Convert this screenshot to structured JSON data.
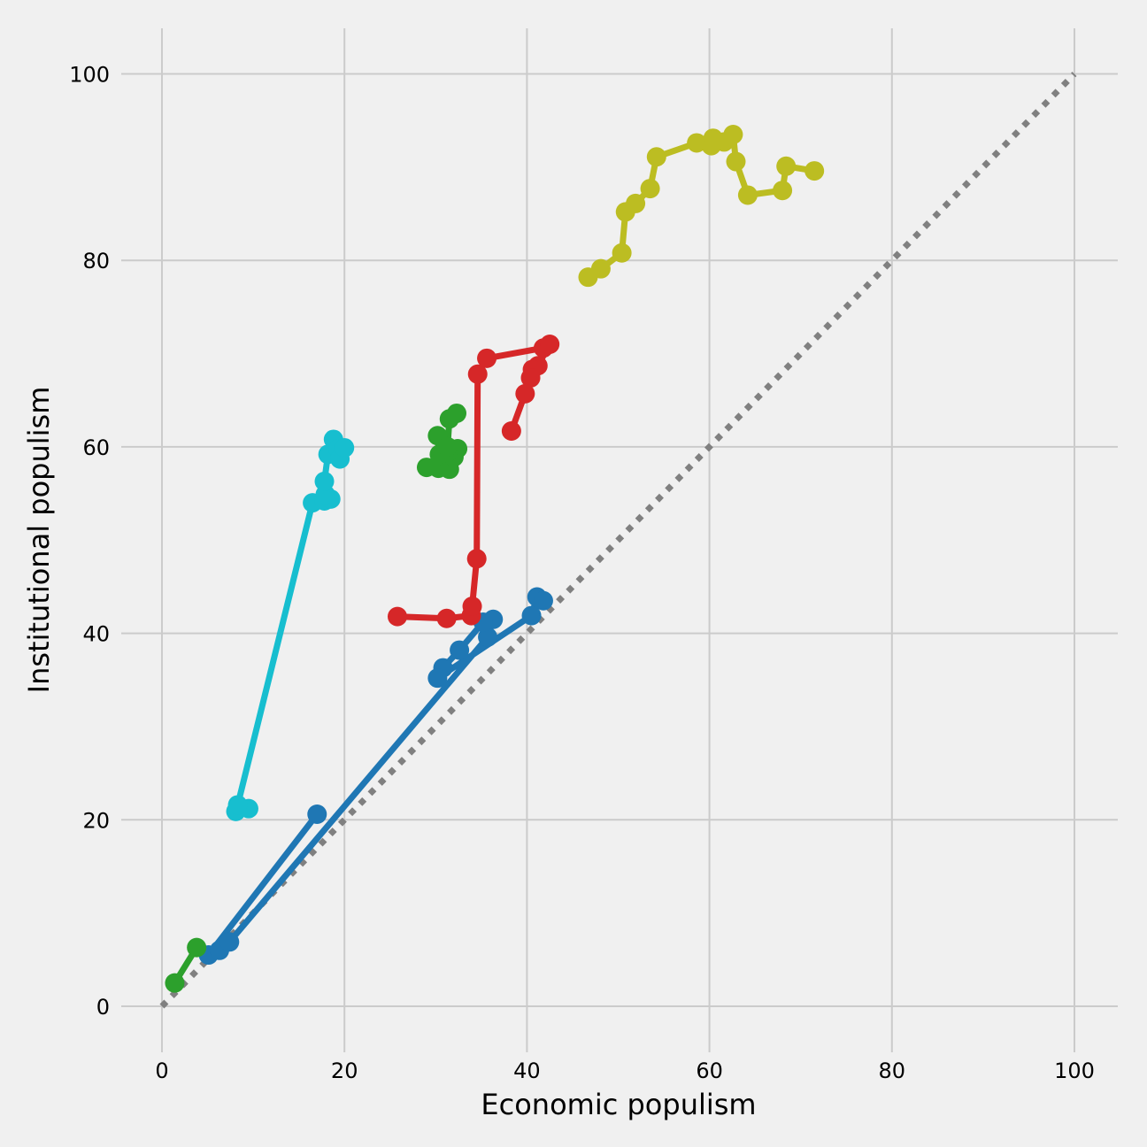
{
  "chart_data": {
    "type": "line",
    "title": "",
    "xlabel": "Economic populism",
    "ylabel": "Institutional populism",
    "xlim": [
      -5,
      105
    ],
    "ylim": [
      -5,
      105
    ],
    "xticks": [
      0,
      20,
      40,
      60,
      80,
      100
    ],
    "yticks": [
      0,
      20,
      40,
      60,
      80,
      100
    ],
    "grid": true,
    "reference_line": {
      "style": "dotted",
      "color": "#808080",
      "points": [
        [
          0,
          0
        ],
        [
          100,
          100
        ]
      ]
    },
    "series": [
      {
        "color": "#17becf",
        "points": [
          [
            8.1,
            20.9
          ],
          [
            9.5,
            21.2
          ],
          [
            8.3,
            21.6
          ],
          [
            16.5,
            54.0
          ],
          [
            17.8,
            54.2
          ],
          [
            18.5,
            54.4
          ],
          [
            17.9,
            54.9
          ],
          [
            17.8,
            56.3
          ],
          [
            18.2,
            59.2
          ],
          [
            18.8,
            60.8
          ],
          [
            19.3,
            59.8
          ],
          [
            19.5,
            58.7
          ],
          [
            20.0,
            59.9
          ]
        ]
      },
      {
        "color": "#1f77b4",
        "points": [
          [
            17.0,
            20.6
          ],
          [
            5.1,
            5.5
          ],
          [
            6.3,
            6.0
          ],
          [
            7.4,
            6.9
          ],
          [
            35.7,
            39.6
          ],
          [
            36.3,
            41.5
          ],
          [
            35.2,
            41.2
          ],
          [
            32.6,
            38.2
          ],
          [
            30.8,
            36.3
          ],
          [
            30.2,
            35.2
          ],
          [
            40.5,
            41.9
          ],
          [
            41.1,
            43.9
          ],
          [
            41.8,
            43.5
          ]
        ]
      },
      {
        "color": "#2ca02c",
        "points": [
          [
            1.4,
            2.5
          ],
          [
            3.8,
            6.3
          ]
        ]
      },
      {
        "color": "#2ca02c",
        "points": [
          [
            29.0,
            57.8
          ],
          [
            30.3,
            57.7
          ],
          [
            31.5,
            57.6
          ],
          [
            32.0,
            58.9
          ],
          [
            32.4,
            59.8
          ],
          [
            31.3,
            59.4
          ],
          [
            30.4,
            59.2
          ],
          [
            30.2,
            61.2
          ],
          [
            31.3,
            60.0
          ],
          [
            31.5,
            63.0
          ],
          [
            32.3,
            63.6
          ]
        ]
      },
      {
        "color": "#d62728",
        "points": [
          [
            25.8,
            41.8
          ],
          [
            31.2,
            41.6
          ],
          [
            33.9,
            41.9
          ],
          [
            34.0,
            42.9
          ],
          [
            34.5,
            48.0
          ],
          [
            34.6,
            67.8
          ],
          [
            35.6,
            69.5
          ],
          [
            41.8,
            70.6
          ],
          [
            42.5,
            71.0
          ],
          [
            41.2,
            68.7
          ],
          [
            40.6,
            68.3
          ],
          [
            40.4,
            67.4
          ],
          [
            39.8,
            65.7
          ],
          [
            38.3,
            61.7
          ]
        ]
      },
      {
        "color": "#bcbd22",
        "points": [
          [
            46.7,
            78.2
          ],
          [
            48.1,
            79.1
          ],
          [
            50.4,
            80.8
          ],
          [
            50.8,
            85.2
          ],
          [
            51.9,
            86.1
          ],
          [
            53.5,
            87.7
          ],
          [
            54.2,
            91.1
          ],
          [
            58.6,
            92.6
          ],
          [
            60.2,
            92.3
          ],
          [
            60.4,
            93.1
          ],
          [
            61.6,
            92.7
          ],
          [
            62.6,
            93.5
          ],
          [
            62.9,
            90.6
          ],
          [
            64.2,
            87.0
          ],
          [
            68.0,
            87.5
          ],
          [
            68.4,
            90.1
          ],
          [
            71.5,
            89.6
          ]
        ]
      }
    ]
  }
}
